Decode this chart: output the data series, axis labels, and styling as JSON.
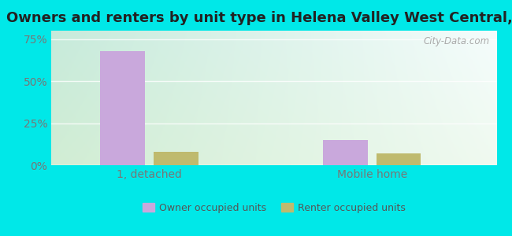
{
  "title": "Owners and renters by unit type in Helena Valley West Central, MT",
  "categories": [
    "1, detached",
    "Mobile home"
  ],
  "owner_values": [
    68.0,
    15.0
  ],
  "renter_values": [
    8.0,
    7.0
  ],
  "owner_color": "#c9a8dc",
  "renter_color": "#bfba6e",
  "yticks": [
    0,
    25,
    50,
    75
  ],
  "yticklabels": [
    "0%",
    "25%",
    "50%",
    "75%"
  ],
  "ylim": [
    0,
    80
  ],
  "bar_width": 0.1,
  "group_centers": [
    0.22,
    0.72
  ],
  "legend_labels": [
    "Owner occupied units",
    "Renter occupied units"
  ],
  "watermark": "City-Data.com",
  "title_fontsize": 13,
  "tick_fontsize": 10,
  "fig_bg": "#00e8e8",
  "plot_bg_topleft": "#c8e8d0",
  "plot_bg_topright": "#f0f8f8",
  "plot_bg_botleft": "#d8eed8",
  "plot_bg_botright": "#f5fdf8"
}
